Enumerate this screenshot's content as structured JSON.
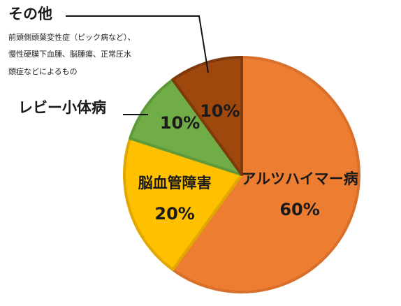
{
  "chart_data": {
    "type": "pie",
    "slices": [
      {
        "label": "アルツハイマー病",
        "value": 60,
        "value_label": "60%",
        "color": "#ED7D31",
        "border": "#D8702B"
      },
      {
        "label": "脳血管障害",
        "value": 20,
        "value_label": "20%",
        "color": "#FFC000",
        "border": "#E0A800"
      },
      {
        "label": "レビー小体病",
        "value": 10,
        "value_label": "10%",
        "color": "#70AD47",
        "border": "#5E9A3B"
      },
      {
        "label": "その他",
        "value": 10,
        "value_label": "10%",
        "color": "#9E480E",
        "border": "#7F3A0C"
      }
    ],
    "start_position": "top",
    "direction": "clockwise",
    "other_note": [
      "前頭側頭葉変性症（ピック病など）、",
      "慢性硬膜下血腫、脳腫瘍、正常圧水",
      "頭症などによるもの"
    ]
  }
}
